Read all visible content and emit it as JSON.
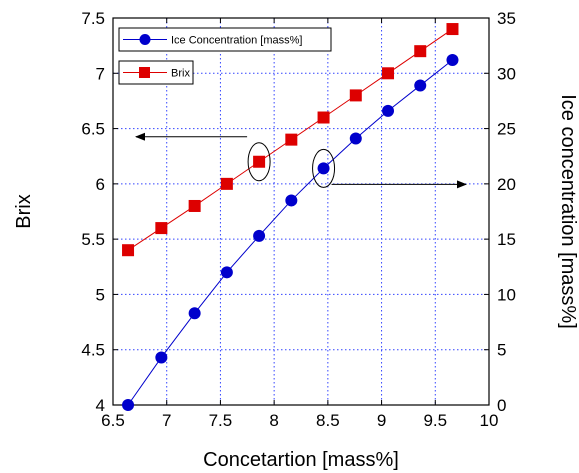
{
  "chart_data": {
    "type": "line",
    "xlabel": "Concetartion [mass%]",
    "ylabel_left": "Brix",
    "ylabel_right": "Ice concentration [mass%]",
    "xlim": [
      6.5,
      10
    ],
    "ylim_left": [
      4,
      7.5
    ],
    "ylim_right": [
      0,
      35
    ],
    "x_ticks": [
      "6.5",
      "7",
      "7.5",
      "8",
      "8.5",
      "9",
      "9.5",
      "10"
    ],
    "x_tick_values": [
      6.5,
      7,
      7.5,
      8,
      8.5,
      9,
      9.5,
      10
    ],
    "y_left_ticks": [
      "4",
      "4.5",
      "5",
      "5.5",
      "6",
      "6.5",
      "7",
      "7.5"
    ],
    "y_left_tick_values": [
      4,
      4.5,
      5,
      5.5,
      6,
      6.5,
      7,
      7.5
    ],
    "y_right_ticks": [
      "0",
      "5",
      "10",
      "15",
      "20",
      "25",
      "30",
      "35"
    ],
    "y_right_tick_values": [
      0,
      5,
      10,
      15,
      20,
      25,
      30,
      35
    ],
    "grid": true,
    "legend_position": "top-left",
    "series": [
      {
        "name": "Ice Concentration [mass%]",
        "axis": "right",
        "marker": "circle",
        "color": "#0000cc",
        "x": [
          6.64,
          6.95,
          7.26,
          7.56,
          7.86,
          8.16,
          8.46,
          8.76,
          9.06,
          9.36,
          9.66
        ],
        "y": [
          0,
          4.3,
          8.3,
          12.0,
          15.3,
          18.5,
          21.4,
          24.1,
          26.6,
          28.9,
          31.2
        ]
      },
      {
        "name": "Brix",
        "axis": "left",
        "marker": "square",
        "color": "#dd0000",
        "x": [
          6.64,
          6.95,
          7.26,
          7.56,
          7.86,
          8.16,
          8.46,
          8.76,
          9.06,
          9.36,
          9.66
        ],
        "y": [
          5.4,
          5.6,
          5.8,
          6.0,
          6.2,
          6.4,
          6.6,
          6.8,
          7.0,
          7.2,
          7.4
        ]
      }
    ],
    "annotations": [
      {
        "type": "ellipse-arrow",
        "target_series": "Brix",
        "at": {
          "x": 7.86,
          "y": 6.2
        },
        "points_to": "left axis"
      },
      {
        "type": "ellipse-arrow",
        "target_series": "Ice Concentration [mass%]",
        "at": {
          "x": 8.46,
          "y": 21.4
        },
        "points_to": "right axis"
      }
    ]
  }
}
